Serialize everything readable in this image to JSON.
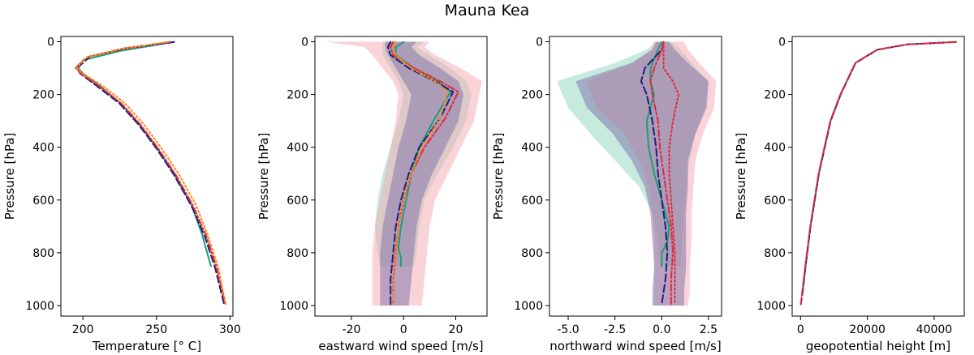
{
  "figure_title": "Mauna Kea",
  "colors": {
    "teal": "#1b9e77",
    "navy": "#1f1f7a",
    "red": "#e8273a",
    "orange": "#ff8c1a",
    "band_teal": "#8fd6bd",
    "band_purple": "#7b6fa8",
    "band_pink": "#f4a7b2"
  },
  "chart_data": [
    {
      "type": "line",
      "xlabel": "Temperature [$^\\circ$ C]",
      "xlabel_display": "Temperature [° C]",
      "ylabel": "Pressure [hPa]",
      "xlim": [
        185,
        302
      ],
      "ylim": [
        1040,
        -20
      ],
      "xticks": [
        200,
        250,
        300
      ],
      "yticks": [
        0,
        200,
        400,
        600,
        800,
        1000
      ],
      "series": [
        {
          "style": "solid",
          "color": "#1b9e77",
          "x": [
            262,
            225,
            200,
            197,
            200,
            212,
            225,
            238,
            250,
            262,
            274,
            281,
            287
          ],
          "y": [
            1,
            35,
            70,
            100,
            120,
            170,
            230,
            310,
            400,
            500,
            620,
            730,
            850
          ]
        },
        {
          "style": "dashed",
          "color": "#1f1f7a",
          "x": [
            262,
            230,
            205,
            196,
            198,
            210,
            225,
            238,
            250,
            262,
            274,
            283,
            290,
            296
          ],
          "y": [
            1,
            25,
            55,
            100,
            120,
            170,
            235,
            315,
            405,
            505,
            625,
            740,
            860,
            995
          ]
        },
        {
          "style": "dashdot",
          "color": "#e8273a",
          "x": [
            259,
            228,
            203,
            195,
            198,
            211,
            226,
            239,
            251,
            263,
            275,
            284,
            291,
            297
          ],
          "y": [
            1,
            25,
            58,
            98,
            118,
            168,
            233,
            313,
            403,
            503,
            623,
            738,
            858,
            995
          ]
        },
        {
          "style": "dotted",
          "color": "#ff8c1a",
          "x": [
            258,
            226,
            202,
            196,
            199,
            213,
            228,
            241,
            253,
            265,
            277,
            285,
            292,
            297
          ],
          "y": [
            1,
            28,
            60,
            98,
            118,
            165,
            230,
            310,
            400,
            500,
            620,
            735,
            855,
            995
          ]
        }
      ]
    },
    {
      "type": "line",
      "xlabel": "eastward wind speed [m/s]",
      "ylabel": "Pressure [hPa]",
      "xlim": [
        -34,
        32
      ],
      "ylim": [
        1040,
        -20
      ],
      "xticks": [
        -20,
        0,
        20
      ],
      "yticks": [
        0,
        200,
        400,
        600,
        800,
        1000
      ],
      "bands": [
        {
          "color": "#8fd6bd",
          "y": [
            0,
            20,
            50,
            100,
            150,
            200,
            300,
            400,
            500,
            600,
            700,
            800,
            850
          ],
          "lo": [
            -8,
            -8,
            -8,
            -5,
            -2,
            0,
            -2,
            -5,
            -8,
            -10,
            -11,
            -10,
            -9
          ],
          "hi": [
            8,
            5,
            10,
            18,
            24,
            26,
            24,
            19,
            13,
            8,
            6,
            5,
            4
          ]
        },
        {
          "color": "#f4a7b2",
          "y": [
            0,
            20,
            50,
            100,
            150,
            200,
            300,
            400,
            500,
            600,
            700,
            800,
            900,
            1000
          ],
          "lo": [
            -30,
            -15,
            -12,
            -8,
            -4,
            -2,
            -3,
            -5,
            -7,
            -9,
            -11,
            -12,
            -12,
            -12
          ],
          "hi": [
            10,
            8,
            12,
            22,
            30,
            29,
            27,
            22,
            17,
            12,
            10,
            9,
            8,
            7
          ]
        },
        {
          "color": "#7b6fa8",
          "y": [
            0,
            20,
            50,
            100,
            150,
            200,
            300,
            400,
            500,
            600,
            700,
            800,
            900,
            1000
          ],
          "lo": [
            -7,
            -7,
            -6,
            -3,
            0,
            3,
            1,
            -2,
            -4,
            -6,
            -8,
            -9,
            -9,
            -9
          ],
          "hi": [
            5,
            3,
            6,
            14,
            21,
            23,
            21,
            16,
            11,
            7,
            5,
            4,
            3,
            2
          ]
        }
      ],
      "series": [
        {
          "style": "solid",
          "color": "#1b9e77",
          "x": [
            0,
            -3,
            -3,
            4,
            13,
            18,
            12,
            6,
            3,
            1,
            -1,
            -2,
            -1,
            -1
          ],
          "y": [
            1,
            20,
            50,
            100,
            150,
            190,
            290,
            400,
            500,
            600,
            700,
            780,
            820,
            850
          ]
        },
        {
          "style": "dashed",
          "color": "#1f1f7a",
          "x": [
            -5,
            -6,
            -5,
            2,
            12,
            19,
            14,
            6,
            2,
            -1,
            -3,
            -4,
            -5,
            -5
          ],
          "y": [
            1,
            20,
            50,
            100,
            150,
            190,
            290,
            400,
            500,
            600,
            700,
            800,
            900,
            995
          ]
        },
        {
          "style": "dashdot",
          "color": "#e8273a",
          "x": [
            -4,
            -5,
            -4,
            4,
            14,
            21,
            16,
            8,
            3,
            0,
            -2,
            -3,
            -4,
            -4
          ],
          "y": [
            1,
            20,
            50,
            100,
            150,
            190,
            290,
            400,
            500,
            600,
            700,
            800,
            900,
            995
          ]
        },
        {
          "style": "dotted",
          "color": "#ff8c1a",
          "x": [
            -3,
            -4,
            -3,
            3,
            12,
            17,
            14,
            7,
            3,
            0,
            -2,
            -3,
            -4,
            -4
          ],
          "y": [
            1,
            20,
            50,
            100,
            150,
            190,
            290,
            400,
            500,
            600,
            700,
            800,
            900,
            995
          ]
        }
      ]
    },
    {
      "type": "line",
      "xlabel": "northward wind speed [m/s]",
      "ylabel": "Pressure [hPa]",
      "xlim": [
        -6,
        3.2
      ],
      "ylim": [
        1040,
        -20
      ],
      "xticks": [
        -5.0,
        -2.5,
        0.0,
        2.5
      ],
      "yticks": [
        0,
        200,
        400,
        600,
        800,
        1000
      ],
      "bands": [
        {
          "color": "#8fd6bd",
          "y": [
            0,
            30,
            80,
            150,
            250,
            350,
            450,
            550,
            650,
            750,
            850
          ],
          "lo": [
            -0.3,
            -0.8,
            -2.5,
            -5.6,
            -5.0,
            -3.8,
            -2.5,
            -1.2,
            -0.5,
            -0.2,
            -0.1
          ],
          "hi": [
            0.5,
            1.0,
            1.6,
            2.5,
            2.3,
            1.8,
            1.5,
            1.3,
            1.2,
            1.1,
            1.0
          ]
        },
        {
          "color": "#f4a7b2",
          "y": [
            0,
            30,
            80,
            150,
            250,
            350,
            450,
            550,
            650,
            750,
            850,
            950,
            1000
          ],
          "lo": [
            -0.4,
            -0.6,
            -1.5,
            -4.0,
            -3.5,
            -2.0,
            -1.2,
            -0.7,
            -0.5,
            -0.4,
            -0.4,
            -0.4,
            -0.4
          ],
          "hi": [
            1.2,
            1.4,
            2.0,
            2.9,
            2.8,
            2.2,
            1.8,
            1.7,
            1.6,
            1.6,
            1.5,
            1.5,
            1.4
          ]
        },
        {
          "color": "#7b6fa8",
          "y": [
            0,
            30,
            80,
            150,
            250,
            350,
            450,
            550,
            650,
            750,
            850,
            950,
            1000
          ],
          "lo": [
            -0.3,
            -0.5,
            -1.6,
            -4.6,
            -4.0,
            -2.6,
            -1.6,
            -0.9,
            -0.6,
            -0.5,
            -0.4,
            -0.5,
            -0.5
          ],
          "hi": [
            0.4,
            0.7,
            1.4,
            2.5,
            2.4,
            1.8,
            1.4,
            1.4,
            1.3,
            1.3,
            1.3,
            1.2,
            1.2
          ]
        }
      ],
      "series": [
        {
          "style": "solid",
          "color": "#1b9e77",
          "x": [
            0.0,
            -0.2,
            -0.6,
            -0.6,
            -0.4,
            -0.8,
            -0.7,
            -0.4,
            0.0,
            0.4,
            0.3,
            0.0,
            0.0
          ],
          "y": [
            1,
            30,
            100,
            150,
            200,
            300,
            400,
            500,
            600,
            700,
            760,
            800,
            850
          ]
        },
        {
          "style": "dashed",
          "color": "#1f1f7a",
          "x": [
            0.1,
            0.0,
            -0.9,
            -1.1,
            -0.8,
            -0.5,
            -0.3,
            -0.2,
            0.0,
            0.2,
            0.3,
            0.2,
            0.0
          ],
          "y": [
            1,
            30,
            100,
            150,
            200,
            300,
            400,
            500,
            600,
            700,
            800,
            900,
            995
          ]
        },
        {
          "style": "dashdot",
          "color": "#e8273a",
          "x": [
            0.1,
            0.0,
            -0.4,
            -0.6,
            -0.5,
            -0.2,
            -0.1,
            0.1,
            0.3,
            0.5,
            0.6,
            0.5,
            0.5
          ],
          "y": [
            1,
            30,
            100,
            150,
            200,
            300,
            400,
            500,
            600,
            700,
            800,
            900,
            995
          ]
        },
        {
          "style": "dotted",
          "color": "#e8273a",
          "x": [
            0.1,
            0.1,
            0.1,
            0.6,
            0.9,
            0.6,
            0.4,
            0.4,
            0.5,
            0.6,
            0.7,
            0.7,
            0.7
          ],
          "y": [
            1,
            30,
            100,
            150,
            200,
            300,
            400,
            500,
            600,
            700,
            800,
            900,
            995
          ]
        }
      ]
    },
    {
      "type": "line",
      "xlabel": "geopotential height [m]",
      "ylabel": "Pressure [hPa]",
      "xlim": [
        -2500,
        49000
      ],
      "ylim": [
        1040,
        -20
      ],
      "xticks": [
        0,
        20000,
        40000
      ],
      "yticks": [
        0,
        200,
        400,
        600,
        800,
        1000
      ],
      "series": [
        {
          "style": "solid",
          "color": "#1b9e77",
          "x": [
            46500,
            32000,
            23000,
            16500,
            12000,
            9000,
            5500,
            3000,
            1500,
            600
          ],
          "y": [
            1,
            10,
            30,
            80,
            200,
            300,
            500,
            700,
            850,
            950
          ]
        },
        {
          "style": "dashed",
          "color": "#1f1f7a",
          "x": [
            46500,
            32000,
            23000,
            16500,
            12000,
            9000,
            5500,
            3000,
            1500,
            600,
            100
          ],
          "y": [
            1,
            10,
            30,
            80,
            200,
            300,
            500,
            700,
            850,
            950,
            995
          ]
        },
        {
          "style": "dashdot",
          "color": "#e8273a",
          "x": [
            46300,
            31800,
            22900,
            16400,
            11900,
            8900,
            5400,
            2900,
            1400,
            500,
            100
          ],
          "y": [
            1,
            10,
            30,
            80,
            200,
            300,
            500,
            700,
            850,
            950,
            995
          ]
        }
      ]
    }
  ]
}
